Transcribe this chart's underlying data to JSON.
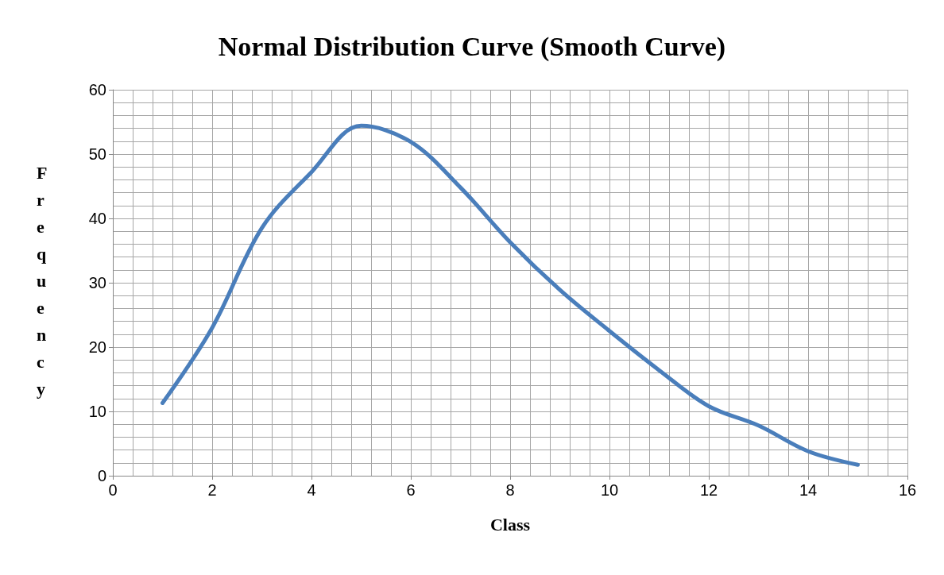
{
  "chart_data": {
    "type": "line",
    "title": "Normal Distribution Curve (Smooth Curve)",
    "xlabel": "Class",
    "ylabel": "Frequency",
    "x": [
      1,
      2,
      3,
      4,
      5,
      6,
      7,
      8,
      9,
      10,
      11,
      12,
      13,
      14,
      15
    ],
    "series": [
      {
        "color": "#4a7ebb",
        "values": [
          11.3,
          23,
          38.5,
          47.2,
          54.4,
          51.9,
          44.8,
          36.3,
          28.9,
          22.5,
          16.4,
          10.8,
          7.8,
          3.8,
          1.7
        ]
      }
    ],
    "xlim": [
      0,
      16
    ],
    "xticks": [
      0,
      2,
      4,
      6,
      8,
      10,
      12,
      14,
      16
    ],
    "ylim": [
      0,
      60
    ],
    "yticks": [
      0,
      10,
      20,
      30,
      40,
      50,
      60
    ],
    "grid": true,
    "marker": "none",
    "line_style": "solid"
  }
}
